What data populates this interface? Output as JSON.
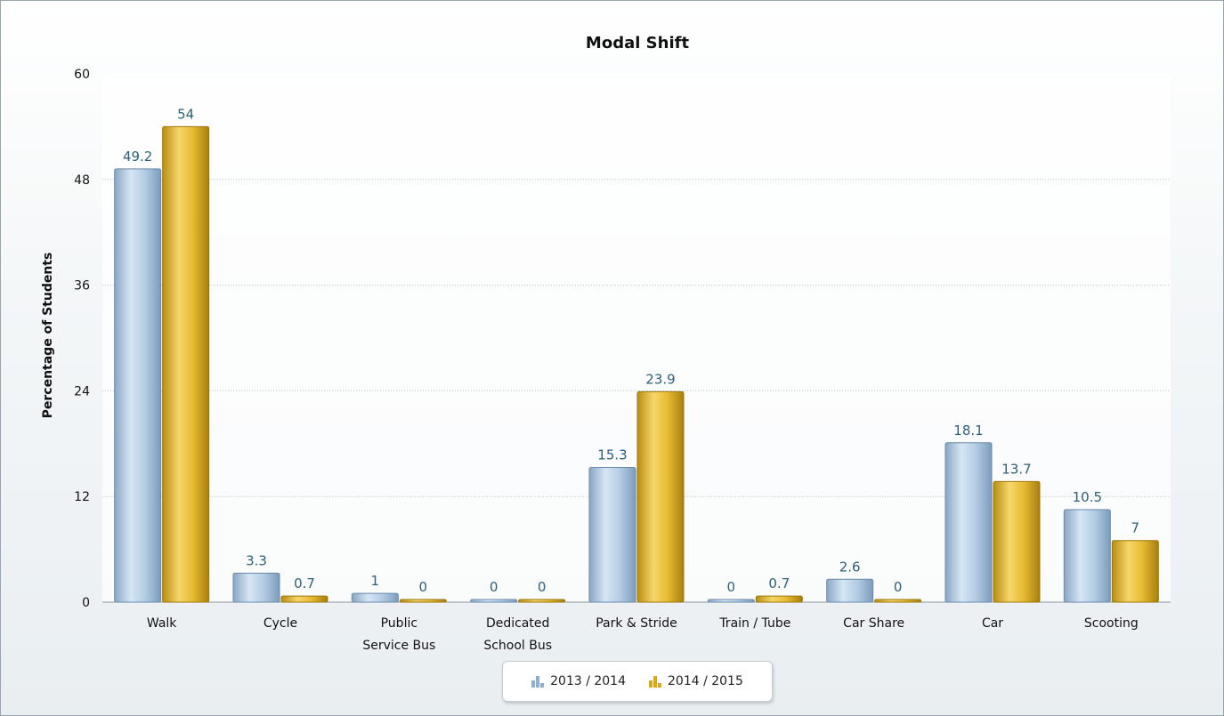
{
  "chart_data": {
    "type": "bar",
    "title": "Modal Shift",
    "xlabel": "",
    "ylabel": "Percentage of Students",
    "ylim": [
      0,
      60
    ],
    "yticks": [
      0,
      12,
      24,
      36,
      48,
      60
    ],
    "grid": true,
    "legend_position": "bottom",
    "categories": [
      [
        "Walk"
      ],
      [
        "Cycle"
      ],
      [
        "Public",
        "Service Bus"
      ],
      [
        "Dedicated",
        "School Bus"
      ],
      [
        "Park & Stride"
      ],
      [
        "Train / Tube"
      ],
      [
        "Car Share"
      ],
      [
        "Car"
      ],
      [
        "Scooting"
      ]
    ],
    "series": [
      {
        "name": "2013 / 2014",
        "color": "#a9c6e0",
        "values": [
          49.2,
          3.3,
          1,
          0,
          15.3,
          0,
          2.6,
          18.1,
          10.5
        ]
      },
      {
        "name": "2014 / 2015",
        "color": "#e3b62b",
        "values": [
          54,
          0.7,
          0,
          0,
          23.9,
          0.7,
          0,
          13.7,
          7
        ]
      }
    ]
  }
}
